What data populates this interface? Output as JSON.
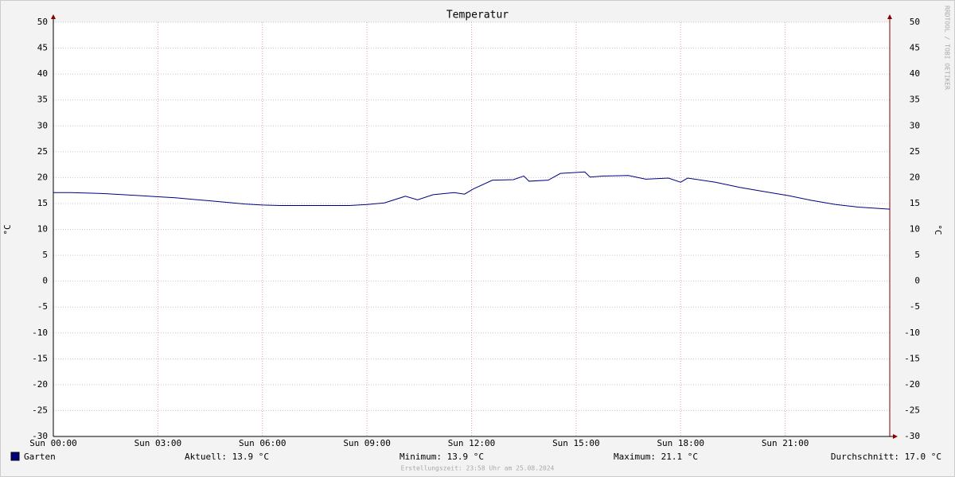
{
  "chart_data": {
    "type": "line",
    "title": "Temperatur",
    "y_label": "°C",
    "y2_label": "°C",
    "watermark": "RRDTOOL / TOBI OETIKER",
    "x": [
      0,
      0.5,
      1,
      1.5,
      2,
      2.5,
      3,
      3.5,
      4,
      4.5,
      5,
      5.5,
      6,
      6.5,
      7,
      7.5,
      8,
      8.5,
      9,
      9.5,
      10.1,
      10.45,
      10.9,
      11.5,
      11.8,
      12.05,
      12.6,
      13.2,
      13.5,
      13.65,
      14.2,
      14.55,
      15.25,
      15.4,
      15.8,
      16.5,
      17.0,
      17.65,
      18.0,
      18.2,
      19.0,
      19.7,
      20.4,
      21.1,
      21.75,
      22.45,
      23.1,
      24
    ],
    "series": [
      {
        "name": "Garten",
        "color": "#00007f",
        "values": [
          17.1,
          17.1,
          17.0,
          16.9,
          16.7,
          16.5,
          16.3,
          16.1,
          15.8,
          15.5,
          15.2,
          14.9,
          14.7,
          14.6,
          14.6,
          14.6,
          14.6,
          14.6,
          14.8,
          15.1,
          16.4,
          15.7,
          16.7,
          17.1,
          16.8,
          17.8,
          19.5,
          19.6,
          20.3,
          19.3,
          19.5,
          20.8,
          21.1,
          20.1,
          20.3,
          20.4,
          19.7,
          19.9,
          19.1,
          19.9,
          19.1,
          18.1,
          17.3,
          16.5,
          15.6,
          14.8,
          14.3,
          13.9
        ]
      }
    ],
    "xlim": [
      0,
      24
    ],
    "xticks": [
      {
        "value": 0,
        "label": "Sun 00:00"
      },
      {
        "value": 3,
        "label": "Sun 03:00"
      },
      {
        "value": 6,
        "label": "Sun 06:00"
      },
      {
        "value": 9,
        "label": "Sun 09:00"
      },
      {
        "value": 12,
        "label": "Sun 12:00"
      },
      {
        "value": 15,
        "label": "Sun 15:00"
      },
      {
        "value": 18,
        "label": "Sun 18:00"
      },
      {
        "value": 21,
        "label": "Sun 21:00"
      }
    ],
    "ylim": [
      -30,
      50
    ],
    "yticks": [
      -30,
      -25,
      -20,
      -15,
      -10,
      -5,
      0,
      5,
      10,
      15,
      20,
      25,
      30,
      35,
      40,
      45,
      50
    ],
    "grid": true,
    "stats": [
      "Aktuell: 13.9 °C",
      "Minimum: 13.9 °C",
      "Maximum: 21.1 °C",
      "Durchschnitt: 17.0 °C"
    ],
    "footer": "Erstellungszeit: 23:58 Uhr am 25.08.2024"
  }
}
